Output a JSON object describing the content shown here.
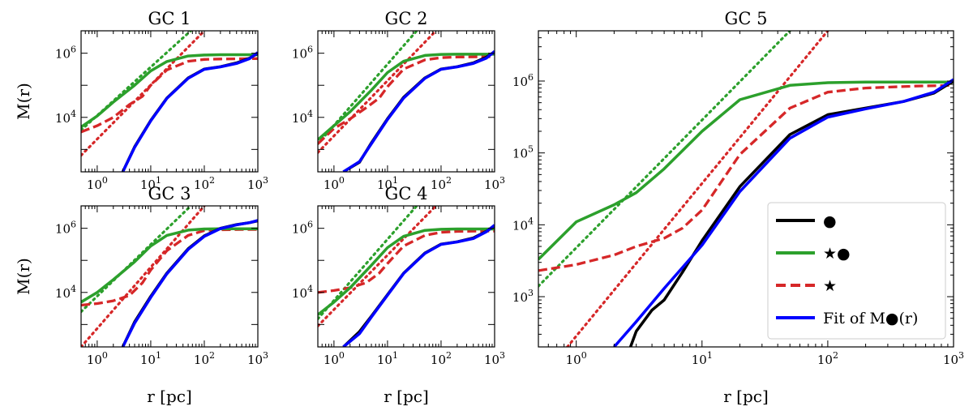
{
  "legend_entries": [
    {
      "key": "black",
      "label": "●"
    },
    {
      "key": "green",
      "label": "★●"
    },
    {
      "key": "red",
      "label": "★"
    },
    {
      "key": "blue",
      "label": "Fit of M●(r)"
    }
  ],
  "chart_data": [
    {
      "type": "line",
      "title": "GC 1",
      "xlabel": "r  [pc]",
      "ylabel": "M(r)",
      "xscale": "log",
      "yscale": "log",
      "xlim": [
        0.5,
        1000
      ],
      "ylim": [
        200,
        5000000
      ],
      "xticks": [
        "10^0",
        "10^1",
        "10^2",
        "10^3"
      ],
      "yticks": [
        "10^4",
        "10^6"
      ],
      "series": [
        {
          "name": "●",
          "color": "#000000",
          "style": "solid",
          "x": [
            3,
            5,
            10,
            20,
            50,
            100,
            200,
            400,
            700,
            1000
          ],
          "y": [
            200,
            1200,
            8000,
            40000,
            170000,
            320000,
            380000,
            500000,
            700000,
            1000000
          ]
        },
        {
          "name": "★●",
          "color": "#2ca02c",
          "style": "solid",
          "x": [
            0.5,
            1,
            2,
            5,
            10,
            20,
            50,
            100,
            200,
            500,
            1000
          ],
          "y": [
            5000,
            11000,
            30000,
            100000,
            280000,
            550000,
            820000,
            880000,
            900000,
            900000,
            900000
          ]
        },
        {
          "name": "★",
          "color": "#d62728",
          "style": "dashed",
          "x": [
            0.5,
            1,
            2,
            4,
            7,
            10,
            20,
            50,
            100,
            200,
            500,
            1000
          ],
          "y": [
            3500,
            5500,
            10000,
            25000,
            45000,
            100000,
            300000,
            560000,
            640000,
            660000,
            670000,
            680000
          ]
        },
        {
          "name": "Fit of M●(r)",
          "color": "#0000ff",
          "style": "solid",
          "x": [
            3,
            5,
            10,
            20,
            50,
            100,
            200,
            400,
            700,
            1000
          ],
          "y": [
            200,
            1150,
            7800,
            39000,
            165000,
            315000,
            375000,
            480000,
            680000,
            1050000
          ]
        },
        {
          "name": "★● small-r power law",
          "color": "#2ca02c",
          "style": "dotted",
          "x": [
            0.5,
            56
          ],
          "y": [
            4000,
            5000000
          ]
        },
        {
          "name": "★ small-r power law",
          "color": "#d62728",
          "style": "dotted",
          "x": [
            0.5,
            100
          ],
          "y": [
            650,
            5000000
          ]
        }
      ]
    },
    {
      "type": "line",
      "title": "GC 2",
      "xlabel": "r  [pc]",
      "ylabel": "",
      "xscale": "log",
      "yscale": "log",
      "xlim": [
        0.5,
        1000
      ],
      "ylim": [
        200,
        5000000
      ],
      "xticks": [
        "10^0",
        "10^1",
        "10^2",
        "10^3"
      ],
      "yticks": [
        "10^4",
        "10^6"
      ],
      "series": [
        {
          "name": "●",
          "color": "#000000",
          "style": "solid",
          "x": [
            1.5,
            3,
            5,
            10,
            20,
            50,
            100,
            200,
            400,
            700,
            1000
          ],
          "y": [
            200,
            400,
            1600,
            9000,
            42000,
            170000,
            320000,
            380000,
            500000,
            750000,
            1100000
          ]
        },
        {
          "name": "★●",
          "color": "#2ca02c",
          "style": "solid",
          "x": [
            0.5,
            1,
            2,
            5,
            10,
            20,
            50,
            100,
            200,
            500,
            1000
          ],
          "y": [
            2000,
            5500,
            15000,
            70000,
            250000,
            560000,
            850000,
            920000,
            930000,
            930000,
            930000
          ]
        },
        {
          "name": "★",
          "color": "#d62728",
          "style": "dashed",
          "x": [
            0.5,
            1,
            2,
            4,
            7,
            10,
            20,
            50,
            100,
            200,
            500,
            1000
          ],
          "y": [
            1500,
            4500,
            9000,
            20000,
            40000,
            90000,
            320000,
            620000,
            730000,
            760000,
            770000,
            780000
          ]
        },
        {
          "name": "Fit of M●(r)",
          "color": "#0000ff",
          "style": "solid",
          "x": [
            1.5,
            3,
            5,
            10,
            20,
            50,
            100,
            200,
            400,
            700,
            1000
          ],
          "y": [
            200,
            420,
            1500,
            8600,
            40000,
            165000,
            315000,
            375000,
            480000,
            700000,
            1150000
          ]
        },
        {
          "name": "★● small-r power law",
          "color": "#2ca02c",
          "style": "dotted",
          "x": [
            0.5,
            35
          ],
          "y": [
            1500,
            5000000
          ]
        },
        {
          "name": "★ small-r power law",
          "color": "#d62728",
          "style": "dotted",
          "x": [
            0.5,
            80
          ],
          "y": [
            800,
            5000000
          ]
        }
      ]
    },
    {
      "type": "line",
      "title": "GC 3",
      "xlabel": "r  [pc]",
      "ylabel": "M(r)",
      "xscale": "log",
      "yscale": "log",
      "xlim": [
        0.5,
        1000
      ],
      "ylim": [
        200,
        5000000
      ],
      "xticks": [
        "10^0",
        "10^1",
        "10^2",
        "10^3"
      ],
      "yticks": [
        "10^4",
        "10^6"
      ],
      "series": [
        {
          "name": "●",
          "color": "#000000",
          "style": "solid",
          "x": [
            3,
            5,
            10,
            20,
            50,
            100,
            200,
            400,
            700,
            1000
          ],
          "y": [
            200,
            1200,
            7500,
            40000,
            230000,
            580000,
            1000000,
            1300000,
            1500000,
            1700000
          ]
        },
        {
          "name": "★●",
          "color": "#2ca02c",
          "style": "solid",
          "x": [
            0.5,
            1,
            2,
            5,
            10,
            20,
            50,
            100,
            200,
            500,
            1000
          ],
          "y": [
            5000,
            10000,
            25000,
            90000,
            280000,
            600000,
            880000,
            950000,
            970000,
            970000,
            970000
          ]
        },
        {
          "name": "★",
          "color": "#d62728",
          "style": "dashed",
          "x": [
            0.5,
            1,
            2,
            4,
            7,
            10,
            20,
            50,
            100,
            200,
            500,
            1000
          ],
          "y": [
            4000,
            4500,
            5500,
            8000,
            20000,
            50000,
            200000,
            600000,
            850000,
            900000,
            920000,
            920000
          ]
        },
        {
          "name": "Fit of M●(r)",
          "color": "#0000ff",
          "style": "solid",
          "x": [
            3,
            5,
            10,
            20,
            50,
            100,
            200,
            400,
            700,
            1000
          ],
          "y": [
            200,
            1100,
            7000,
            38000,
            220000,
            560000,
            980000,
            1280000,
            1500000,
            1750000
          ]
        },
        {
          "name": "★● small-r power law",
          "color": "#2ca02c",
          "style": "dotted",
          "x": [
            0.5,
            56
          ],
          "y": [
            2500,
            5000000
          ]
        },
        {
          "name": "★ small-r power law",
          "color": "#d62728",
          "style": "dotted",
          "x": [
            0.5,
            100
          ],
          "y": [
            200,
            5000000
          ]
        }
      ]
    },
    {
      "type": "line",
      "title": "GC 4",
      "xlabel": "r  [pc]",
      "ylabel": "",
      "xscale": "log",
      "yscale": "log",
      "xlim": [
        0.5,
        1000
      ],
      "ylim": [
        200,
        5000000
      ],
      "xticks": [
        "10^0",
        "10^1",
        "10^2",
        "10^3"
      ],
      "yticks": [
        "10^4",
        "10^6"
      ],
      "series": [
        {
          "name": "●",
          "color": "#000000",
          "style": "solid",
          "x": [
            1.5,
            3,
            5,
            10,
            20,
            50,
            100,
            200,
            400,
            700,
            1000
          ],
          "y": [
            200,
            600,
            1800,
            8500,
            40000,
            170000,
            320000,
            380000,
            500000,
            800000,
            1200000
          ]
        },
        {
          "name": "★●",
          "color": "#2ca02c",
          "style": "solid",
          "x": [
            0.5,
            1,
            2,
            5,
            10,
            20,
            50,
            100,
            200,
            500,
            1000
          ],
          "y": [
            2000,
            5000,
            14000,
            70000,
            250000,
            560000,
            860000,
            930000,
            950000,
            950000,
            950000
          ]
        },
        {
          "name": "★",
          "color": "#d62728",
          "style": "dashed",
          "x": [
            0.5,
            1,
            2,
            4,
            7,
            10,
            20,
            50,
            100,
            200,
            500,
            1000
          ],
          "y": [
            10000,
            11500,
            14000,
            20000,
            40000,
            80000,
            280000,
            600000,
            750000,
            800000,
            820000,
            820000
          ]
        },
        {
          "name": "Fit of M●(r)",
          "color": "#0000ff",
          "style": "solid",
          "x": [
            1.5,
            3,
            5,
            10,
            20,
            50,
            100,
            200,
            400,
            700,
            1000
          ],
          "y": [
            200,
            520,
            1700,
            8200,
            39000,
            165000,
            315000,
            375000,
            480000,
            780000,
            1250000
          ]
        },
        {
          "name": "★● small-r power law",
          "color": "#2ca02c",
          "style": "dotted",
          "x": [
            0.5,
            35
          ],
          "y": [
            1500,
            5000000
          ]
        },
        {
          "name": "★ small-r power law",
          "color": "#d62728",
          "style": "dotted",
          "x": [
            0.5,
            80
          ],
          "y": [
            900,
            5000000
          ]
        }
      ]
    },
    {
      "type": "line",
      "title": "GC 5",
      "xlabel": "r  [pc]",
      "ylabel": "",
      "xscale": "log",
      "yscale": "log",
      "xlim": [
        0.5,
        1000
      ],
      "ylim": [
        200,
        5000000
      ],
      "xticks": [
        "10^0",
        "10^1",
        "10^2",
        "10^3"
      ],
      "yticks": [
        "10^3",
        "10^4",
        "10^5",
        "10^6"
      ],
      "legend": "lower-right",
      "series": [
        {
          "name": "●",
          "color": "#000000",
          "style": "solid",
          "x": [
            2.7,
            3,
            4,
            5,
            7,
            10,
            20,
            50,
            100,
            200,
            400,
            700,
            1000
          ],
          "y": [
            200,
            330,
            650,
            900,
            2200,
            6000,
            34000,
            180000,
            340000,
            420000,
            520000,
            680000,
            1000000
          ]
        },
        {
          "name": "★●",
          "color": "#2ca02c",
          "style": "solid",
          "x": [
            0.5,
            1,
            2,
            3,
            5,
            10,
            20,
            50,
            100,
            200,
            500,
            1000
          ],
          "y": [
            3300,
            11000,
            19000,
            28000,
            60000,
            200000,
            550000,
            870000,
            950000,
            970000,
            970000,
            970000
          ]
        },
        {
          "name": "★",
          "color": "#d62728",
          "style": "dashed",
          "x": [
            0.5,
            1,
            2,
            3,
            5,
            7,
            10,
            20,
            50,
            100,
            200,
            500,
            1000
          ],
          "y": [
            2300,
            2800,
            3800,
            5000,
            6500,
            9000,
            16000,
            95000,
            420000,
            700000,
            800000,
            850000,
            870000
          ]
        },
        {
          "name": "Fit of M●(r)",
          "color": "#0000ff",
          "style": "solid",
          "x": [
            2,
            3,
            5,
            10,
            20,
            50,
            100,
            200,
            400,
            700,
            1000
          ],
          "y": [
            200,
            450,
            1300,
            5200,
            29000,
            160000,
            315000,
            410000,
            520000,
            700000,
            1050000
          ]
        },
        {
          "name": "★● small-r power law",
          "color": "#2ca02c",
          "style": "dotted",
          "x": [
            0.5,
            50
          ],
          "y": [
            1400,
            5000000
          ]
        },
        {
          "name": "★ small-r power law",
          "color": "#d62728",
          "style": "dotted",
          "x": [
            0.85,
            100
          ],
          "y": [
            200,
            5000000
          ]
        }
      ]
    }
  ]
}
